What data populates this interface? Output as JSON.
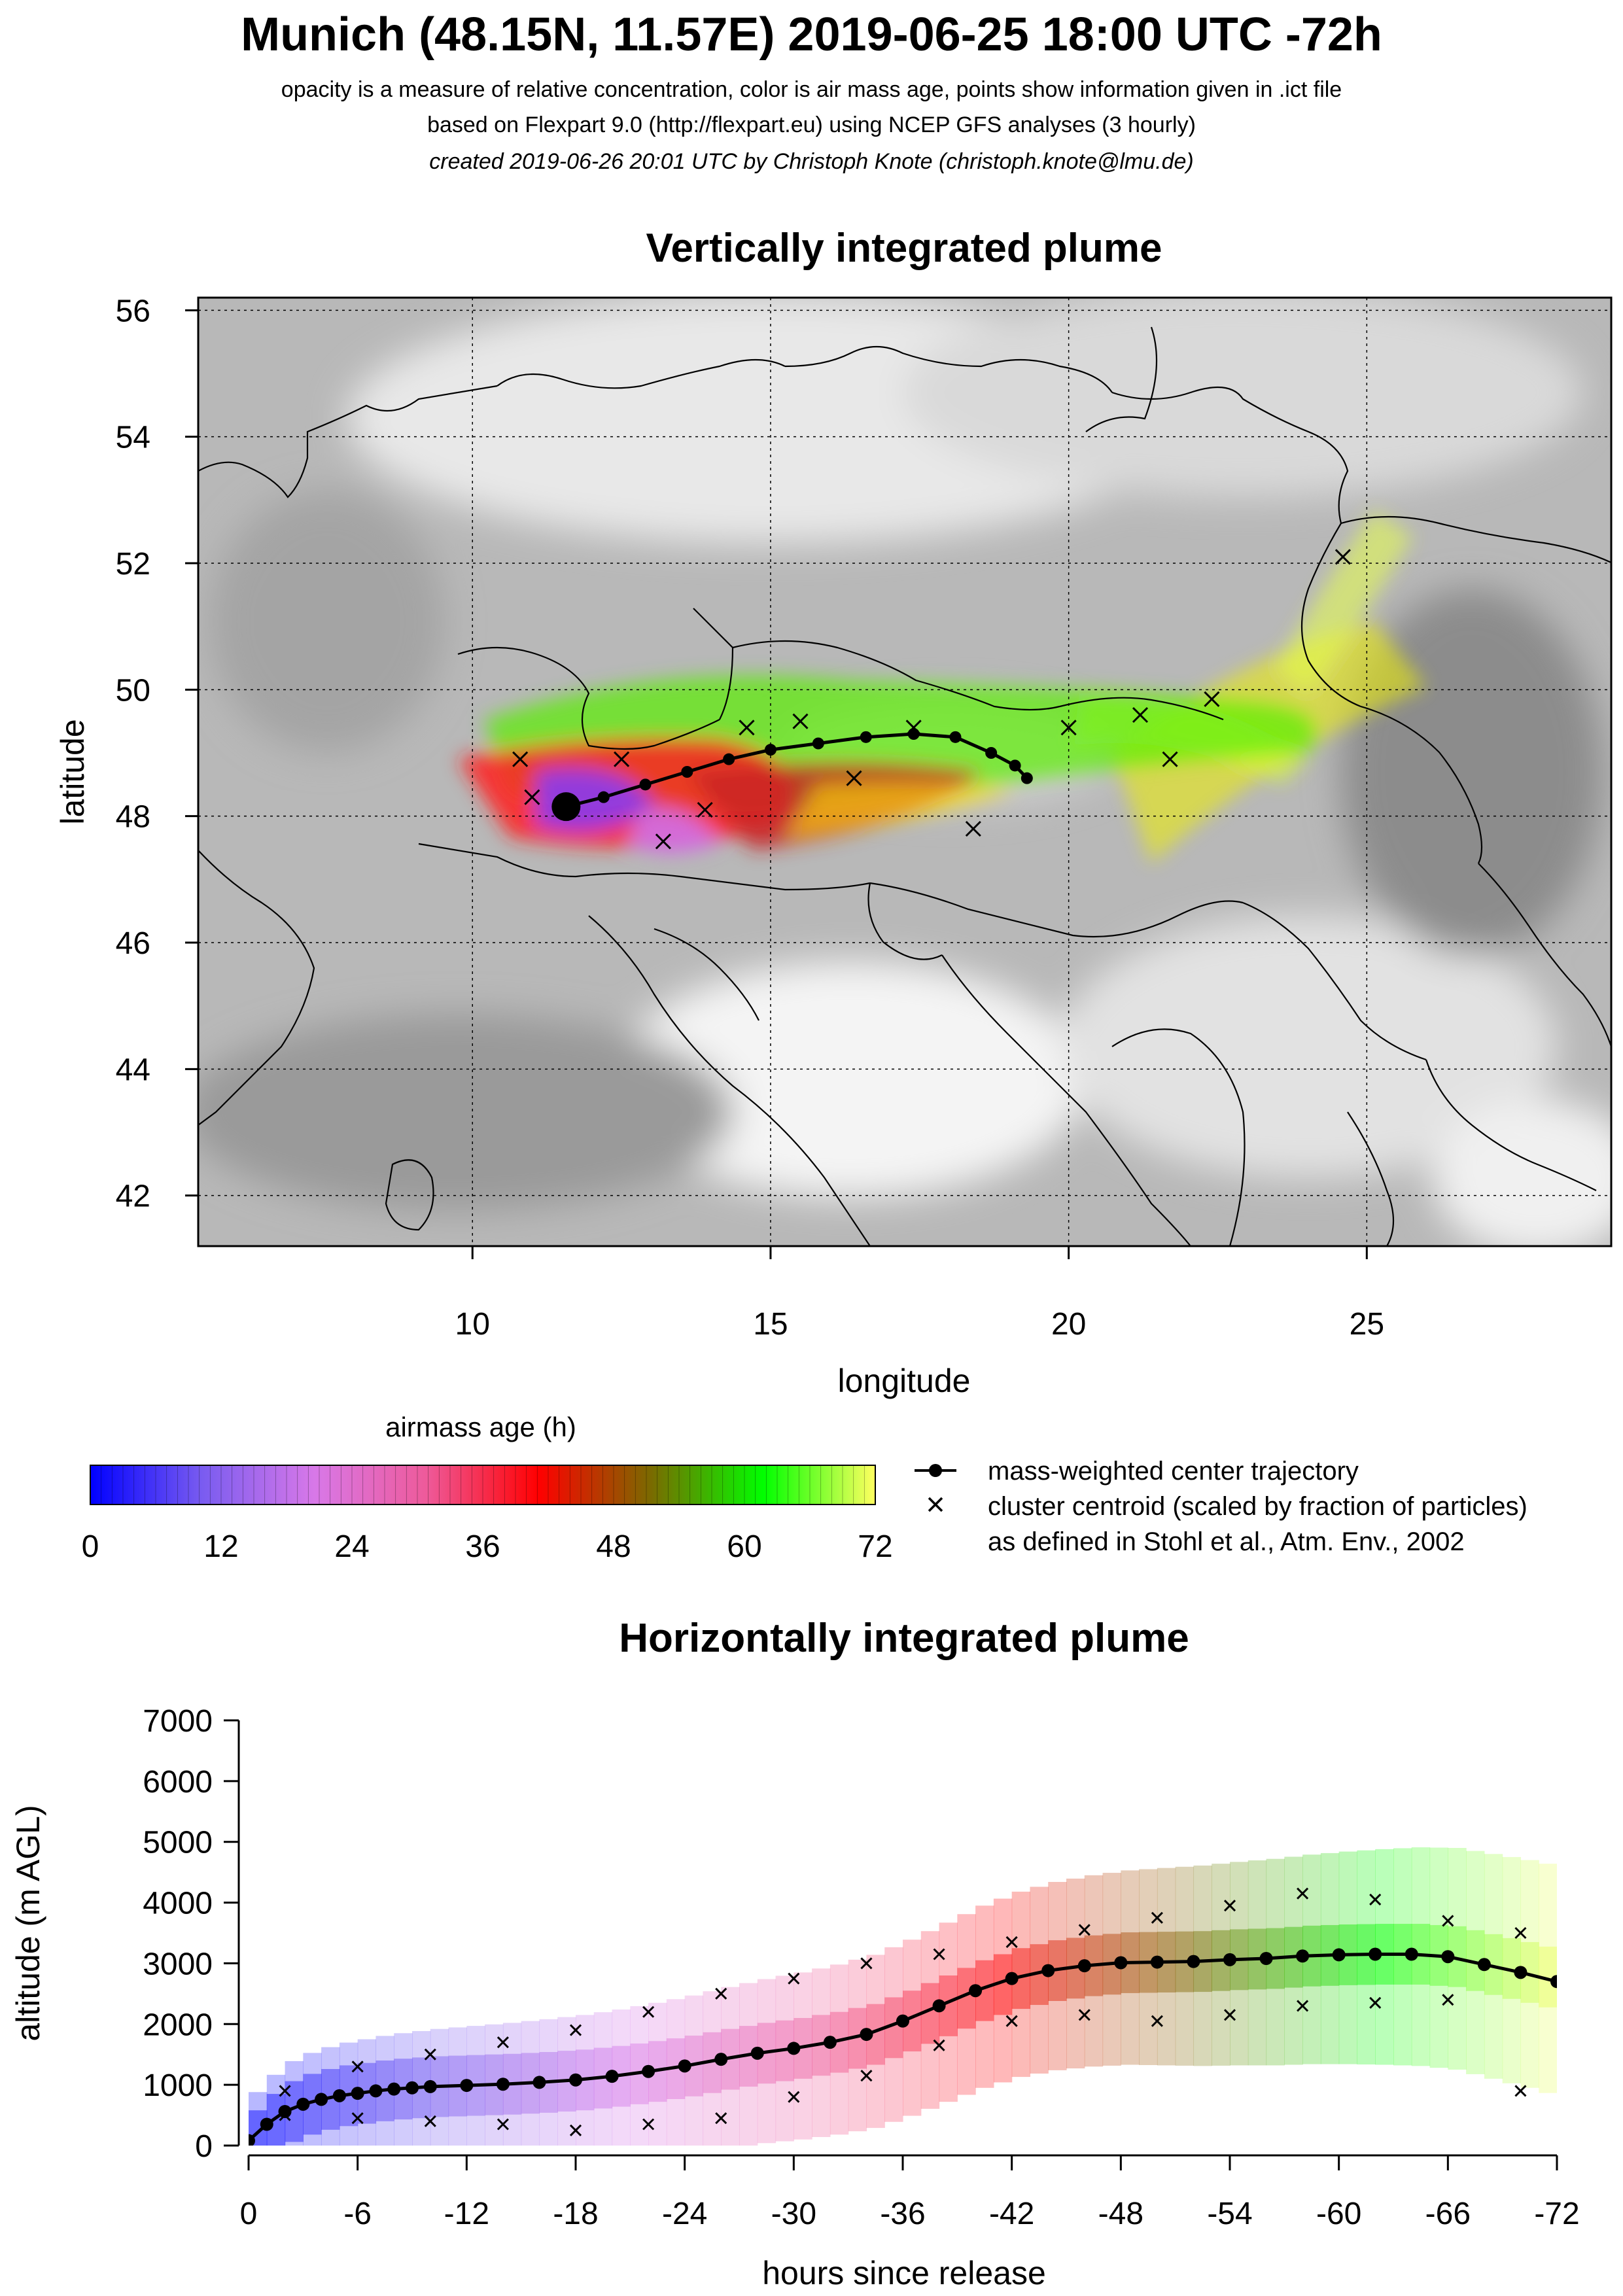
{
  "header": {
    "title": "Munich (48.15N, 11.57E) 2019-06-25 18:00 UTC -72h",
    "subtitle1": "opacity is a measure of relative concentration, color is air mass age, points show information given in .ict file",
    "subtitle2": "based on Flexpart 9.0 (http://flexpart.eu) using NCEP GFS analyses (3 hourly)",
    "subtitle3": "created 2019-06-26 20:01 UTC by Christoph Knote (christoph.knote@lmu.de)"
  },
  "colorbar": {
    "title": "airmass age (h)",
    "ticks": [
      "0",
      "12",
      "24",
      "36",
      "48",
      "60",
      "72"
    ],
    "stops": [
      "#0000ff",
      "#7a5cf0",
      "#d878e8",
      "#ee5a9a",
      "#ff0000",
      "#7a6a00",
      "#00ff00",
      "#ffff60"
    ]
  },
  "legend": {
    "trajectory_label": "mass-weighted center trajectory",
    "centroid_label": "cluster centroid (scaled by fraction of particles)",
    "centroid_note": "as defined in Stohl et al., Atm. Env., 2002"
  },
  "chart_data": [
    {
      "type": "map",
      "title": "Vertically integrated plume",
      "xlabel": "longitude",
      "ylabel": "latitude",
      "xlim": [
        5.4,
        29.1
      ],
      "ylim": [
        41.2,
        56.2
      ],
      "xticks": [
        "10",
        "15",
        "20",
        "25"
      ],
      "yticks": [
        "42",
        "44",
        "46",
        "48",
        "50",
        "52",
        "54",
        "56"
      ],
      "grid": true,
      "release_point": {
        "lon": 11.57,
        "lat": 48.15
      },
      "center_trajectory": [
        {
          "lon": 11.57,
          "lat": 48.15
        },
        {
          "lon": 12.2,
          "lat": 48.3
        },
        {
          "lon": 12.9,
          "lat": 48.5
        },
        {
          "lon": 13.6,
          "lat": 48.7
        },
        {
          "lon": 14.3,
          "lat": 48.9
        },
        {
          "lon": 15.0,
          "lat": 49.05
        },
        {
          "lon": 15.8,
          "lat": 49.15
        },
        {
          "lon": 16.6,
          "lat": 49.25
        },
        {
          "lon": 17.4,
          "lat": 49.3
        },
        {
          "lon": 18.1,
          "lat": 49.25
        },
        {
          "lon": 18.7,
          "lat": 49.0
        },
        {
          "lon": 19.1,
          "lat": 48.8
        },
        {
          "lon": 19.3,
          "lat": 48.6
        }
      ],
      "cluster_centroids": [
        {
          "lon": 10.8,
          "lat": 48.9
        },
        {
          "lon": 11.0,
          "lat": 48.3
        },
        {
          "lon": 12.5,
          "lat": 48.9
        },
        {
          "lon": 13.2,
          "lat": 47.6
        },
        {
          "lon": 13.9,
          "lat": 48.1
        },
        {
          "lon": 14.6,
          "lat": 49.4
        },
        {
          "lon": 15.5,
          "lat": 49.5
        },
        {
          "lon": 16.4,
          "lat": 48.6
        },
        {
          "lon": 17.4,
          "lat": 49.4
        },
        {
          "lon": 18.4,
          "lat": 47.8
        },
        {
          "lon": 20.0,
          "lat": 49.4
        },
        {
          "lon": 21.2,
          "lat": 49.6
        },
        {
          "lon": 22.4,
          "lat": 49.85
        },
        {
          "lon": 21.7,
          "lat": 48.9
        },
        {
          "lon": 24.6,
          "lat": 52.1
        }
      ]
    },
    {
      "type": "line",
      "title": "Horizontally integrated plume",
      "xlabel": "hours since release",
      "ylabel": "altitude (m AGL)",
      "xlim": [
        0,
        -72
      ],
      "ylim": [
        0,
        7000
      ],
      "xticks": [
        "0",
        "-6",
        "-12",
        "-18",
        "-24",
        "-30",
        "-36",
        "-42",
        "-48",
        "-54",
        "-60",
        "-66",
        "-72"
      ],
      "yticks": [
        "0",
        "1000",
        "2000",
        "3000",
        "4000",
        "5000",
        "6000",
        "7000"
      ],
      "center_trajectory": {
        "x": [
          0,
          -1,
          -2,
          -3,
          -4,
          -5,
          -6,
          -7,
          -8,
          -9,
          -10,
          -12,
          -14,
          -16,
          -18,
          -20,
          -22,
          -24,
          -26,
          -28,
          -30,
          -32,
          -34,
          -36,
          -38,
          -40,
          -42,
          -44,
          -46,
          -48,
          -50,
          -52,
          -54,
          -56,
          -58,
          -60,
          -62,
          -64,
          -66,
          -68,
          -70,
          -72
        ],
        "y": [
          80,
          350,
          560,
          680,
          760,
          820,
          860,
          900,
          930,
          950,
          970,
          990,
          1010,
          1040,
          1080,
          1140,
          1220,
          1310,
          1420,
          1520,
          1600,
          1700,
          1830,
          2050,
          2300,
          2550,
          2750,
          2880,
          2960,
          3010,
          3020,
          3030,
          3060,
          3080,
          3120,
          3140,
          3150,
          3150,
          3110,
          2980,
          2850,
          2700
        ]
      },
      "cluster_upper": {
        "x": [
          -2,
          -6,
          -10,
          -14,
          -18,
          -22,
          -26,
          -30,
          -34,
          -38,
          -42,
          -46,
          -50,
          -54,
          -58,
          -62,
          -66,
          -70
        ],
        "y": [
          900,
          1300,
          1500,
          1700,
          1900,
          2200,
          2500,
          2750,
          3000,
          3150,
          3350,
          3550,
          3750,
          3950,
          4150,
          4050,
          3700,
          3500
        ]
      },
      "cluster_lower": {
        "x": [
          -2,
          -6,
          -10,
          -14,
          -18,
          -22,
          -26,
          -30,
          -34,
          -38,
          -42,
          -46,
          -50,
          -54,
          -58,
          -62,
          -66,
          -70
        ],
        "y": [
          500,
          450,
          400,
          350,
          250,
          350,
          450,
          800,
          1150,
          1650,
          2050,
          2150,
          2050,
          2150,
          2300,
          2350,
          2400,
          900
        ]
      }
    }
  ]
}
